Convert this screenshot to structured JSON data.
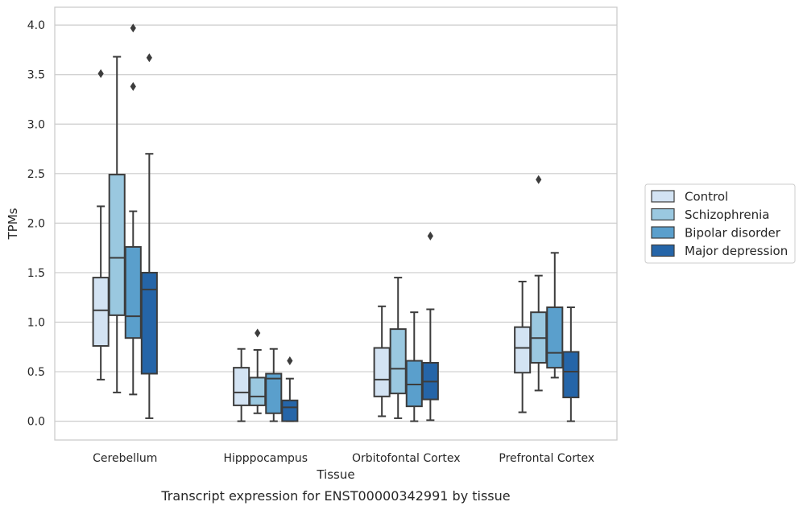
{
  "chart_data": {
    "type": "boxplot",
    "xlabel": "Tissue",
    "ylabel": "TPMs",
    "caption": "Transcript expression for ENST00000342991 by tissue",
    "ylim": [
      -0.19,
      4.18
    ],
    "yticks": [
      0.0,
      0.5,
      1.0,
      1.5,
      2.0,
      2.5,
      3.0,
      3.5,
      4.0
    ],
    "grid": "horizontal",
    "legend_position": "right",
    "categories": [
      "Cerebellum",
      "Hipppocampus",
      "Orbitofontal Cortex",
      "Prefrontal Cortex"
    ],
    "series": [
      {
        "name": "Control",
        "color": "#d3e3f3",
        "boxes": [
          {
            "whislo": 0.42,
            "q1": 0.76,
            "med": 1.12,
            "q3": 1.45,
            "whishi": 2.17,
            "fliers": [
              3.51
            ]
          },
          {
            "whislo": 0.0,
            "q1": 0.16,
            "med": 0.29,
            "q3": 0.54,
            "whishi": 0.73,
            "fliers": []
          },
          {
            "whislo": 0.05,
            "q1": 0.25,
            "med": 0.42,
            "q3": 0.74,
            "whishi": 1.16,
            "fliers": []
          },
          {
            "whislo": 0.09,
            "q1": 0.49,
            "med": 0.74,
            "q3": 0.95,
            "whishi": 1.41,
            "fliers": []
          }
        ]
      },
      {
        "name": "Schizophrenia",
        "color": "#9ac8e0",
        "boxes": [
          {
            "whislo": 0.29,
            "q1": 1.07,
            "med": 1.65,
            "q3": 2.49,
            "whishi": 3.68,
            "fliers": []
          },
          {
            "whislo": 0.08,
            "q1": 0.16,
            "med": 0.25,
            "q3": 0.44,
            "whishi": 0.72,
            "fliers": [
              0.89
            ]
          },
          {
            "whislo": 0.03,
            "q1": 0.28,
            "med": 0.53,
            "q3": 0.93,
            "whishi": 1.45,
            "fliers": []
          },
          {
            "whislo": 0.31,
            "q1": 0.59,
            "med": 0.84,
            "q3": 1.1,
            "whishi": 1.47,
            "fliers": [
              2.44
            ]
          }
        ]
      },
      {
        "name": "Bipolar disorder",
        "color": "#5a9fcc",
        "boxes": [
          {
            "whislo": 0.27,
            "q1": 0.84,
            "med": 1.06,
            "q3": 1.76,
            "whishi": 2.12,
            "fliers": [
              3.38,
              3.97
            ]
          },
          {
            "whislo": 0.0,
            "q1": 0.08,
            "med": 0.43,
            "q3": 0.48,
            "whishi": 0.73,
            "fliers": []
          },
          {
            "whislo": 0.0,
            "q1": 0.15,
            "med": 0.37,
            "q3": 0.61,
            "whishi": 1.1,
            "fliers": []
          },
          {
            "whislo": 0.44,
            "q1": 0.54,
            "med": 0.69,
            "q3": 1.15,
            "whishi": 1.7,
            "fliers": []
          }
        ]
      },
      {
        "name": "Major depression",
        "color": "#2565a8",
        "boxes": [
          {
            "whislo": 0.03,
            "q1": 0.48,
            "med": 1.33,
            "q3": 1.5,
            "whishi": 2.7,
            "fliers": [
              3.67
            ]
          },
          {
            "whislo": 0.0,
            "q1": 0.0,
            "med": 0.14,
            "q3": 0.21,
            "whishi": 0.43,
            "fliers": [
              0.61
            ]
          },
          {
            "whislo": 0.01,
            "q1": 0.22,
            "med": 0.4,
            "q3": 0.59,
            "whishi": 1.13,
            "fliers": [
              1.87
            ]
          },
          {
            "whislo": 0.0,
            "q1": 0.24,
            "med": 0.5,
            "q3": 0.7,
            "whishi": 1.15,
            "fliers": []
          }
        ]
      }
    ]
  }
}
